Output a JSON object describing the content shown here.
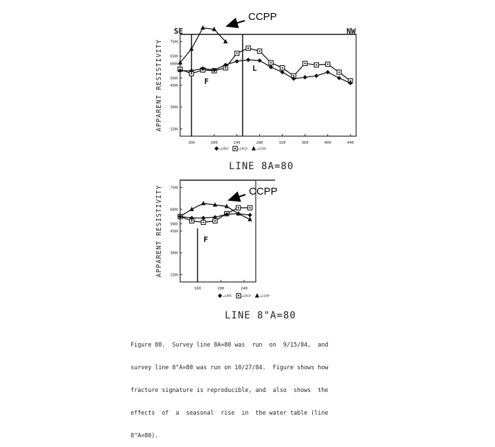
{
  "callout_label": "CCPP",
  "chart_data": [
    {
      "type": "line",
      "title": "LINE 8A=80",
      "ylabel": "APPARENT RESISTIVITY",
      "xlabel": "",
      "xlim": [
        140,
        450
      ],
      "ylim": [
        1000,
        8000
      ],
      "x_ticks": [
        160,
        200,
        240,
        280,
        320,
        360,
        400,
        440
      ],
      "y_ticks": [
        1500,
        3000,
        4500,
        5000,
        6000,
        6500,
        7500
      ],
      "y_tick_labels": [
        "1500",
        "3000",
        "4500",
        "5000",
        "6000",
        "6500",
        "7500"
      ],
      "direction_left": "SE",
      "direction_right": "NW",
      "markers": [
        {
          "label": "F",
          "x": 160
        },
        {
          "label": "L",
          "x": 250
        }
      ],
      "legend": [
        "=CPPC",
        "=CPCP",
        "=CCPP"
      ],
      "grid": false,
      "series": [
        {
          "name": "CCPP",
          "marker": "triangle",
          "x": [
            140,
            160,
            180,
            200,
            220
          ],
          "values": [
            6050,
            7000,
            8450,
            8350,
            7500
          ]
        },
        {
          "name": "CPCP",
          "marker": "square",
          "x": [
            140,
            160,
            180,
            200,
            220,
            240,
            260,
            280,
            300,
            320,
            340,
            360,
            380,
            400,
            420,
            440
          ],
          "values": [
            5600,
            5300,
            5550,
            5500,
            5700,
            6700,
            7050,
            6850,
            6050,
            5700,
            5150,
            6000,
            5900,
            5950,
            5400,
            4800
          ]
        },
        {
          "name": "CPPC",
          "marker": "diamond",
          "x": [
            140,
            160,
            180,
            200,
            220,
            240,
            260,
            280,
            300,
            320,
            340,
            360,
            380,
            400,
            420,
            440
          ],
          "values": [
            5500,
            5500,
            5650,
            5550,
            5900,
            6150,
            6250,
            6200,
            5750,
            5400,
            4950,
            5050,
            5150,
            5400,
            5000,
            4650
          ]
        }
      ]
    },
    {
      "type": "line",
      "title": "LINE 8\"A=80",
      "ylabel": "APPARENT RESISTIVITY",
      "xlabel": "",
      "xlim": [
        130,
        260
      ],
      "ylim": [
        1000,
        8000
      ],
      "x_ticks": [
        160,
        200,
        240
      ],
      "y_ticks": [
        1500,
        3000,
        4500,
        5000,
        6000,
        7500
      ],
      "y_tick_labels": [
        "1500",
        "3000",
        "4500",
        "5000",
        "6000",
        "7500"
      ],
      "markers": [
        {
          "label": "F",
          "x": 160
        }
      ],
      "legend": [
        "=CPPC",
        "=CPCP",
        "=CCPP"
      ],
      "grid": false,
      "series": [
        {
          "name": "CCPP",
          "marker": "triangle",
          "x": [
            130,
            150,
            170,
            190,
            210,
            230,
            250
          ],
          "values": [
            5500,
            6000,
            6400,
            6300,
            6200,
            5700,
            5300
          ]
        },
        {
          "name": "CPCP",
          "marker": "square",
          "x": [
            130,
            150,
            170,
            190,
            210,
            230,
            250
          ],
          "values": [
            5500,
            5200,
            5100,
            5200,
            5700,
            6100,
            6100
          ]
        },
        {
          "name": "CPPC",
          "marker": "diamond",
          "x": [
            130,
            150,
            170,
            190,
            210,
            230,
            250
          ],
          "values": [
            5500,
            5400,
            5400,
            5450,
            5650,
            5700,
            5600
          ]
        }
      ]
    }
  ],
  "caption_lines": [
    "Figure 88.  Survey line 8A=80 was  run  on  9/15/84,  and",
    "survey line 8\"A=80 was run on 10/27/84.  Figure shows how",
    "fracture signature is reproducible, and  also  shows  the",
    "effects  of  a  seasonal  rise  in  the water table (line",
    "8\"A=80)."
  ]
}
